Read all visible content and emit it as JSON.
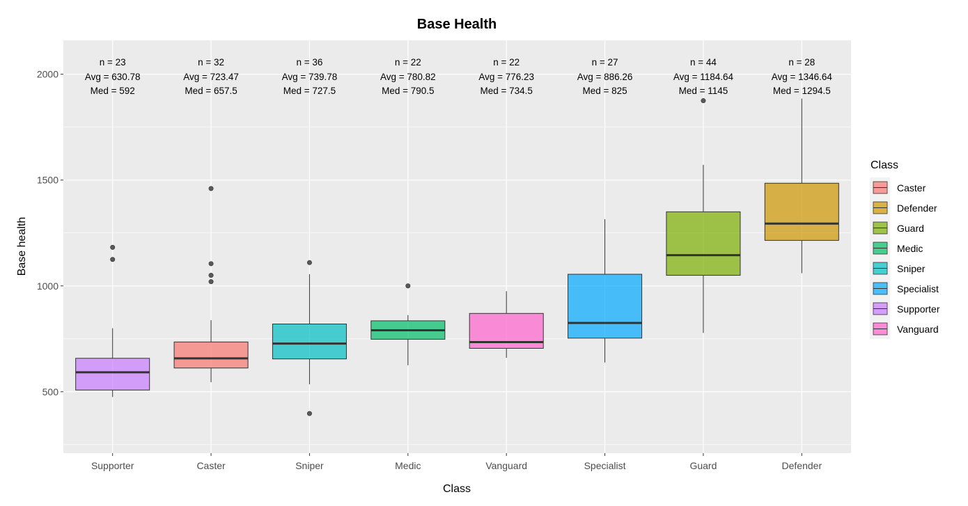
{
  "chart_data": {
    "type": "box",
    "title": "Base Health",
    "xlabel": "Class",
    "ylabel": "Base health",
    "ylim": [
      210,
      2160
    ],
    "yticks": [
      500,
      1000,
      1500,
      2000
    ],
    "grid": true,
    "legend": {
      "title": "Class",
      "placement": "right",
      "items": [
        {
          "name": "Caster",
          "color": "#F8766D"
        },
        {
          "name": "Defender",
          "color": "#CD9600"
        },
        {
          "name": "Guard",
          "color": "#7CAE00"
        },
        {
          "name": "Medic",
          "color": "#00BE67"
        },
        {
          "name": "Sniper",
          "color": "#00BFC4"
        },
        {
          "name": "Specialist",
          "color": "#00A9FF"
        },
        {
          "name": "Supporter",
          "color": "#C77CFF"
        },
        {
          "name": "Vanguard",
          "color": "#FF61CC"
        }
      ]
    },
    "categories": [
      "Supporter",
      "Caster",
      "Sniper",
      "Medic",
      "Vanguard",
      "Specialist",
      "Guard",
      "Defender"
    ],
    "boxes": [
      {
        "class": "Supporter",
        "color": "#C77CFF",
        "whisker_low": 475,
        "q1": 508,
        "median": 592,
        "q3": 658,
        "whisker_high": 800,
        "outliers": [
          1125,
          1182
        ],
        "label_n": "n = 23",
        "label_avg": "Avg = 630.78",
        "label_med": "Med = 592"
      },
      {
        "class": "Caster",
        "color": "#F8766D",
        "whisker_low": 545,
        "q1": 612,
        "median": 657.5,
        "q3": 735,
        "whisker_high": 838,
        "outliers": [
          1020,
          1050,
          1105,
          1460
        ],
        "label_n": "n = 32",
        "label_avg": "Avg = 723.47",
        "label_med": "Med = 657.5"
      },
      {
        "class": "Sniper",
        "color": "#00BFC4",
        "whisker_low": 535,
        "q1": 655,
        "median": 727.5,
        "q3": 820,
        "whisker_high": 1055,
        "outliers": [
          397,
          1110
        ],
        "label_n": "n = 36",
        "label_avg": "Avg = 739.78",
        "label_med": "Med = 727.5"
      },
      {
        "class": "Medic",
        "color": "#00BE67",
        "whisker_low": 625,
        "q1": 748,
        "median": 790.5,
        "q3": 835,
        "whisker_high": 862,
        "outliers": [
          1000
        ],
        "label_n": "n = 22",
        "label_avg": "Avg = 780.82",
        "label_med": "Med = 790.5"
      },
      {
        "class": "Vanguard",
        "color": "#FF61CC",
        "whisker_low": 660,
        "q1": 705,
        "median": 734.5,
        "q3": 870,
        "whisker_high": 975,
        "outliers": [],
        "label_n": "n = 22",
        "label_avg": "Avg = 776.23",
        "label_med": "Med = 734.5"
      },
      {
        "class": "Specialist",
        "color": "#00A9FF",
        "whisker_low": 638,
        "q1": 753,
        "median": 825,
        "q3": 1055,
        "whisker_high": 1315,
        "outliers": [],
        "label_n": "n = 27",
        "label_avg": "Avg = 886.26",
        "label_med": "Med = 825"
      },
      {
        "class": "Guard",
        "color": "#7CAE00",
        "whisker_low": 778,
        "q1": 1050,
        "median": 1145,
        "q3": 1350,
        "whisker_high": 1572,
        "outliers": [
          1875
        ],
        "label_n": "n = 44",
        "label_avg": "Avg = 1184.64",
        "label_med": "Med = 1145"
      },
      {
        "class": "Defender",
        "color": "#CD9600",
        "whisker_low": 1060,
        "q1": 1215,
        "median": 1294.5,
        "q3": 1485,
        "whisker_high": 1885,
        "outliers": [],
        "label_n": "n = 28",
        "label_avg": "Avg = 1346.64",
        "label_med": "Med = 1294.5"
      }
    ]
  }
}
